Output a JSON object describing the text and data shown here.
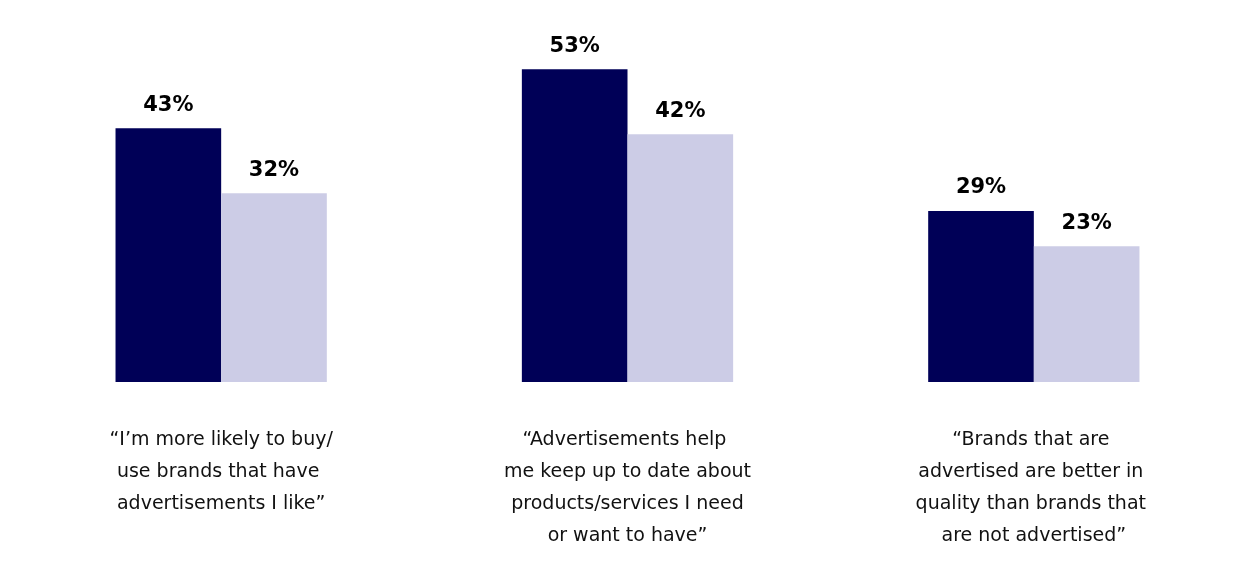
{
  "chart_data": {
    "type": "bar",
    "categories": [
      "“I’m more likely to buy/use brands that have advertisements I like”",
      "“Advertisements help me keep up to date about products/services I need or want to have”",
      "“Brands that are advertised are better in quality than brands that are not advertised”"
    ],
    "series": [
      {
        "color": "#000057",
        "values": [
          43,
          53,
          29
        ],
        "value_labels": [
          "43%",
          "53%",
          "29%"
        ]
      },
      {
        "color": "#ccccE6",
        "values": [
          32,
          42,
          23
        ],
        "value_labels": [
          "32%",
          "42%",
          "23%"
        ]
      }
    ],
    "grid": false
  }
}
